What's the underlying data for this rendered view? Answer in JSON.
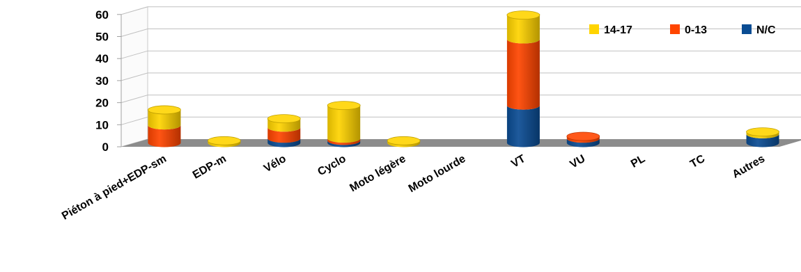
{
  "chart_data": {
    "type": "bar",
    "stacked": true,
    "three_d": true,
    "categories": [
      "Piéton à pied+EDP-sm",
      "EDP-m",
      "Vélo",
      "Cyclo",
      "Moto légère",
      "Moto lourde",
      "VT",
      "VU",
      "PL",
      "TC",
      "Autres"
    ],
    "series": [
      {
        "name": "N/C",
        "color": "#0a4c93",
        "values": [
          0,
          0,
          2,
          1,
          0,
          0,
          17,
          2,
          0,
          0,
          4
        ]
      },
      {
        "name": "0-13",
        "color": "#ff4500",
        "values": [
          8,
          0,
          5,
          1,
          0,
          0,
          30,
          1,
          0,
          0,
          0
        ]
      },
      {
        "name": "14-17",
        "color": "#ffd400",
        "values": [
          7,
          1,
          4,
          15,
          1,
          0,
          11,
          0,
          0,
          0,
          1
        ]
      }
    ],
    "legend_order": [
      "14-17",
      "0-13",
      "N/C"
    ],
    "legend_position": "top-right",
    "ylim": [
      0,
      60
    ],
    "yticks": [
      0,
      10,
      20,
      30,
      40,
      50,
      60
    ],
    "grid": true
  }
}
